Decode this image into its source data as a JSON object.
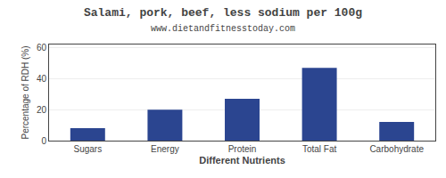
{
  "chart_data": {
    "type": "bar",
    "title": "Salami, pork, beef, less sodium per 100g",
    "subtitle": "www.dietandfitnesstoday.com",
    "xlabel": "Different Nutrients",
    "ylabel": "Percentage of RDH (%)",
    "categories": [
      "Sugars",
      "Energy",
      "Protein",
      "Total Fat",
      "Carbohydrate"
    ],
    "values": [
      8,
      20,
      27,
      47,
      12
    ],
    "color": "#2b4590",
    "ylim": [
      0,
      62
    ],
    "yticks": [
      0,
      20,
      40,
      60
    ],
    "grid": true
  }
}
